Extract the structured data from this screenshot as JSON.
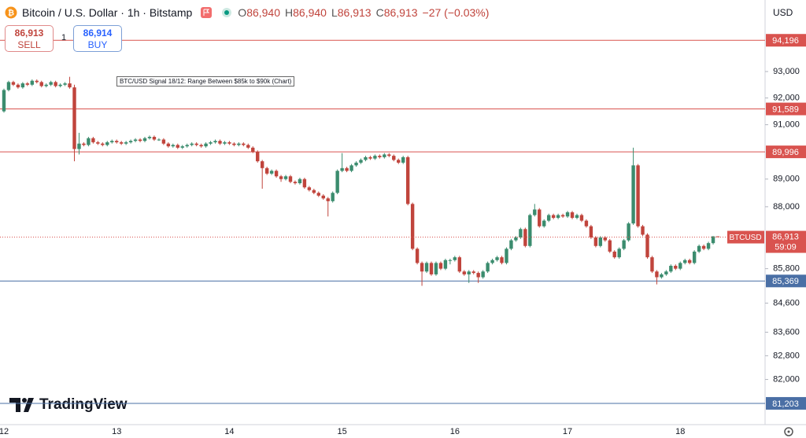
{
  "header": {
    "title": "Bitcoin / U.S. Dollar · 1h · Bitstamp",
    "o_label": "O",
    "open": "86,940",
    "h_label": "H",
    "high": "86,940",
    "l_label": "L",
    "low": "86,913",
    "c_label": "C",
    "close": "86,913",
    "change": "−27 (−0.03%)"
  },
  "trade": {
    "sell_price": "86,913",
    "sell": "SELL",
    "quantity": "1",
    "buy_price": "86,914",
    "buy": "BUY"
  },
  "currency": "USD",
  "brand": "TradingView",
  "chart_data": {
    "type": "candlestick",
    "annotation": "BTC/USD Signal 18/12: Range Between $85k to $90k (Chart)",
    "up_color": "#3b8c6e",
    "down_color": "#c0443c",
    "log_scale": true,
    "ylim": [
      80500,
      95760
    ],
    "yticks": [
      {
        "value": 93000,
        "label": "93,000"
      },
      {
        "value": 92000,
        "label": "92,000"
      },
      {
        "value": 91000,
        "label": "91,000"
      },
      {
        "value": 89000,
        "label": "89,000"
      },
      {
        "value": 88000,
        "label": "88,000"
      },
      {
        "value": 85800,
        "label": "85,800"
      },
      {
        "value": 84600,
        "label": "84,600"
      },
      {
        "value": 83600,
        "label": "83,600"
      },
      {
        "value": 82800,
        "label": "82,800"
      },
      {
        "value": 82000,
        "label": "82,000"
      }
    ],
    "levels": [
      {
        "value": 94196,
        "label": "94,196",
        "color": "#d9534f"
      },
      {
        "value": 91589,
        "label": "91,589",
        "color": "#d9534f"
      },
      {
        "value": 89996,
        "label": "89,996",
        "color": "#d9534f"
      },
      {
        "value": 85369,
        "label": "85,369",
        "color": "#4a6fa5"
      },
      {
        "value": 81203,
        "label": "81,203",
        "color": "#4a6fa5"
      }
    ],
    "last_price": {
      "value": 86913,
      "label": "86,913",
      "symbol": "BTCUSD",
      "countdown": "59:09",
      "color": "#d9534f"
    },
    "categories": [
      "12",
      null,
      null,
      null,
      null,
      null,
      null,
      null,
      null,
      null,
      null,
      null,
      null,
      null,
      null,
      null,
      null,
      null,
      null,
      null,
      null,
      null,
      null,
      null,
      "13",
      null,
      null,
      null,
      null,
      null,
      null,
      null,
      null,
      null,
      null,
      null,
      null,
      null,
      null,
      null,
      null,
      null,
      null,
      null,
      null,
      null,
      null,
      null,
      "14",
      null,
      null,
      null,
      null,
      null,
      null,
      null,
      null,
      null,
      null,
      null,
      null,
      null,
      null,
      null,
      null,
      null,
      null,
      null,
      null,
      null,
      null,
      null,
      "15",
      null,
      null,
      null,
      null,
      null,
      null,
      null,
      null,
      null,
      null,
      null,
      null,
      null,
      null,
      null,
      null,
      null,
      null,
      null,
      null,
      null,
      null,
      null,
      "16",
      null,
      null,
      null,
      null,
      null,
      null,
      null,
      null,
      null,
      null,
      null,
      null,
      null,
      null,
      null,
      null,
      null,
      null,
      null,
      null,
      null,
      null,
      null,
      "17",
      null,
      null,
      null,
      null,
      null,
      null,
      null,
      null,
      null,
      null,
      null,
      null,
      null,
      null,
      null,
      null,
      null,
      null,
      null,
      null,
      null,
      null,
      null,
      "18",
      null,
      null,
      null,
      null,
      null,
      null,
      null,
      null
    ],
    "ohlc": [
      [
        91500,
        92350,
        91450,
        92300
      ],
      [
        92300,
        92650,
        92250,
        92600
      ],
      [
        92600,
        92650,
        92450,
        92500
      ],
      [
        92500,
        92550,
        92350,
        92400
      ],
      [
        92400,
        92600,
        92350,
        92550
      ],
      [
        92550,
        92600,
        92450,
        92500
      ],
      [
        92500,
        92700,
        92450,
        92650
      ],
      [
        92650,
        92700,
        92550,
        92600
      ],
      [
        92600,
        92650,
        92400,
        92450
      ],
      [
        92450,
        92550,
        92400,
        92500
      ],
      [
        92500,
        92650,
        92450,
        92600
      ],
      [
        92600,
        92650,
        92400,
        92450
      ],
      [
        92450,
        92550,
        92400,
        92500
      ],
      [
        92500,
        92600,
        92450,
        92550
      ],
      [
        92550,
        92800,
        92350,
        92400
      ],
      [
        92400,
        92500,
        89650,
        90100
      ],
      [
        90100,
        90700,
        89900,
        90300
      ],
      [
        90300,
        90350,
        90200,
        90250
      ],
      [
        90250,
        90550,
        90200,
        90500
      ],
      [
        90500,
        90550,
        90300,
        90350
      ],
      [
        90350,
        90400,
        90250,
        90300
      ],
      [
        90300,
        90350,
        90200,
        90250
      ],
      [
        90250,
        90400,
        90200,
        90350
      ],
      [
        90350,
        90450,
        90300,
        90400
      ],
      [
        90400,
        90450,
        90300,
        90350
      ],
      [
        90350,
        90400,
        90250,
        90300
      ],
      [
        90300,
        90400,
        90250,
        90350
      ],
      [
        90350,
        90450,
        90300,
        90400
      ],
      [
        90400,
        90500,
        90350,
        90450
      ],
      [
        90450,
        90500,
        90350,
        90400
      ],
      [
        90400,
        90550,
        90350,
        90500
      ],
      [
        90500,
        90600,
        90450,
        90550
      ],
      [
        90550,
        90600,
        90400,
        90450
      ],
      [
        90450,
        90500,
        90400,
        90450
      ],
      [
        90450,
        90500,
        90250,
        90300
      ],
      [
        90300,
        90350,
        90150,
        90200
      ],
      [
        90200,
        90300,
        90150,
        90250
      ],
      [
        90250,
        90300,
        90100,
        90150
      ],
      [
        90150,
        90250,
        90100,
        90200
      ],
      [
        90200,
        90300,
        90150,
        90250
      ],
      [
        90250,
        90350,
        90200,
        90300
      ],
      [
        90300,
        90350,
        90200,
        90250
      ],
      [
        90250,
        90300,
        90150,
        90200
      ],
      [
        90200,
        90350,
        90150,
        90300
      ],
      [
        90300,
        90400,
        90250,
        90350
      ],
      [
        90350,
        90450,
        90300,
        90400
      ],
      [
        90400,
        90450,
        90250,
        90300
      ],
      [
        90300,
        90400,
        90250,
        90350
      ],
      [
        90350,
        90400,
        90250,
        90300
      ],
      [
        90300,
        90350,
        90200,
        90250
      ],
      [
        90250,
        90350,
        90200,
        90300
      ],
      [
        90300,
        90350,
        90200,
        90250
      ],
      [
        90250,
        90300,
        90100,
        90150
      ],
      [
        90150,
        90200,
        89950,
        90000
      ],
      [
        90000,
        90050,
        89600,
        89650
      ],
      [
        89650,
        89700,
        88650,
        89400
      ],
      [
        89400,
        89450,
        89150,
        89200
      ],
      [
        89200,
        89350,
        89150,
        89300
      ],
      [
        89300,
        89350,
        89050,
        89100
      ],
      [
        89100,
        89150,
        88900,
        89000
      ],
      [
        89000,
        89150,
        88950,
        89100
      ],
      [
        89100,
        89150,
        88850,
        88900
      ],
      [
        88900,
        88950,
        88800,
        88850
      ],
      [
        88850,
        89050,
        88800,
        89000
      ],
      [
        89000,
        89050,
        88650,
        88700
      ],
      [
        88700,
        88750,
        88550,
        88600
      ],
      [
        88600,
        88650,
        88450,
        88500
      ],
      [
        88500,
        88550,
        88350,
        88400
      ],
      [
        88400,
        88450,
        88250,
        88300
      ],
      [
        88300,
        88350,
        87650,
        88200
      ],
      [
        88200,
        88550,
        88150,
        88500
      ],
      [
        88500,
        89350,
        88450,
        89300
      ],
      [
        89300,
        89950,
        89250,
        89400
      ],
      [
        89400,
        89450,
        89250,
        89300
      ],
      [
        89300,
        89550,
        89250,
        89500
      ],
      [
        89500,
        89650,
        89450,
        89600
      ],
      [
        89600,
        89750,
        89550,
        89700
      ],
      [
        89700,
        89850,
        89650,
        89800
      ],
      [
        89800,
        89850,
        89700,
        89750
      ],
      [
        89750,
        89900,
        89700,
        89850
      ],
      [
        89850,
        89900,
        89750,
        89800
      ],
      [
        89800,
        89950,
        89750,
        89900
      ],
      [
        89900,
        89950,
        89800,
        89850
      ],
      [
        89850,
        89900,
        89650,
        89700
      ],
      [
        89700,
        89750,
        89550,
        89600
      ],
      [
        89600,
        89850,
        89550,
        89800
      ],
      [
        89800,
        89850,
        88050,
        88100
      ],
      [
        88100,
        88150,
        86450,
        86500
      ],
      [
        86500,
        86550,
        85950,
        86000
      ],
      [
        86000,
        86050,
        85200,
        85700
      ],
      [
        85700,
        86050,
        85650,
        86000
      ],
      [
        86000,
        86050,
        85550,
        85600
      ],
      [
        85600,
        86050,
        85550,
        86000
      ],
      [
        86000,
        86050,
        85750,
        85800
      ],
      [
        85800,
        86150,
        85750,
        86100
      ],
      [
        86100,
        86150,
        85950,
        86100
      ],
      [
        86100,
        86250,
        86050,
        86200
      ],
      [
        86200,
        86250,
        85650,
        85700
      ],
      [
        85700,
        85750,
        85550,
        85600
      ],
      [
        85600,
        85750,
        85300,
        85700
      ],
      [
        85700,
        85750,
        85600,
        85650
      ],
      [
        85650,
        85700,
        85300,
        85500
      ],
      [
        85500,
        85750,
        85450,
        85700
      ],
      [
        85700,
        86050,
        85650,
        86000
      ],
      [
        86000,
        86150,
        85950,
        86100
      ],
      [
        86100,
        86250,
        86050,
        86200
      ],
      [
        86200,
        86250,
        85950,
        86000
      ],
      [
        86000,
        86550,
        85950,
        86500
      ],
      [
        86500,
        86850,
        86450,
        86800
      ],
      [
        86800,
        86950,
        86750,
        86900
      ],
      [
        86900,
        87250,
        86850,
        87200
      ],
      [
        87200,
        87250,
        86550,
        86600
      ],
      [
        86600,
        87750,
        86550,
        87700
      ],
      [
        87700,
        88100,
        87650,
        87900
      ],
      [
        87900,
        87950,
        87250,
        87300
      ],
      [
        87300,
        87550,
        87250,
        87500
      ],
      [
        87500,
        87750,
        87450,
        87700
      ],
      [
        87700,
        87750,
        87550,
        87600
      ],
      [
        87600,
        87750,
        87550,
        87700
      ],
      [
        87700,
        87750,
        87600,
        87650
      ],
      [
        87650,
        87850,
        87600,
        87800
      ],
      [
        87800,
        87850,
        87550,
        87600
      ],
      [
        87600,
        87750,
        87550,
        87700
      ],
      [
        87700,
        87750,
        87450,
        87500
      ],
      [
        87500,
        87550,
        87250,
        87300
      ],
      [
        87300,
        87350,
        86850,
        86900
      ],
      [
        86900,
        86950,
        86550,
        86600
      ],
      [
        86600,
        86950,
        86550,
        86900
      ],
      [
        86900,
        86950,
        86750,
        86800
      ],
      [
        86800,
        86850,
        86350,
        86400
      ],
      [
        86400,
        86450,
        86150,
        86200
      ],
      [
        86200,
        86550,
        86150,
        86500
      ],
      [
        86500,
        86850,
        86450,
        86800
      ],
      [
        86800,
        87450,
        86750,
        87400
      ],
      [
        87400,
        90150,
        87350,
        89500
      ],
      [
        89500,
        89550,
        87250,
        87300
      ],
      [
        87300,
        87350,
        86950,
        87000
      ],
      [
        87000,
        87050,
        86150,
        86200
      ],
      [
        86200,
        86250,
        85650,
        85700
      ],
      [
        85700,
        85750,
        85250,
        85500
      ],
      [
        85500,
        85650,
        85450,
        85600
      ],
      [
        85600,
        85750,
        85550,
        85700
      ],
      [
        85700,
        85950,
        85650,
        85900
      ],
      [
        85900,
        85950,
        85750,
        85800
      ],
      [
        85800,
        86050,
        85750,
        86000
      ],
      [
        86000,
        86150,
        85950,
        86100
      ],
      [
        86100,
        86150,
        85950,
        86000
      ],
      [
        86000,
        86450,
        85950,
        86400
      ],
      [
        86400,
        86650,
        86350,
        86600
      ],
      [
        86600,
        86650,
        86450,
        86500
      ],
      [
        86500,
        86750,
        86450,
        86700
      ],
      [
        86700,
        86950,
        86650,
        86940
      ],
      [
        86940,
        86940,
        86913,
        86913
      ]
    ]
  }
}
